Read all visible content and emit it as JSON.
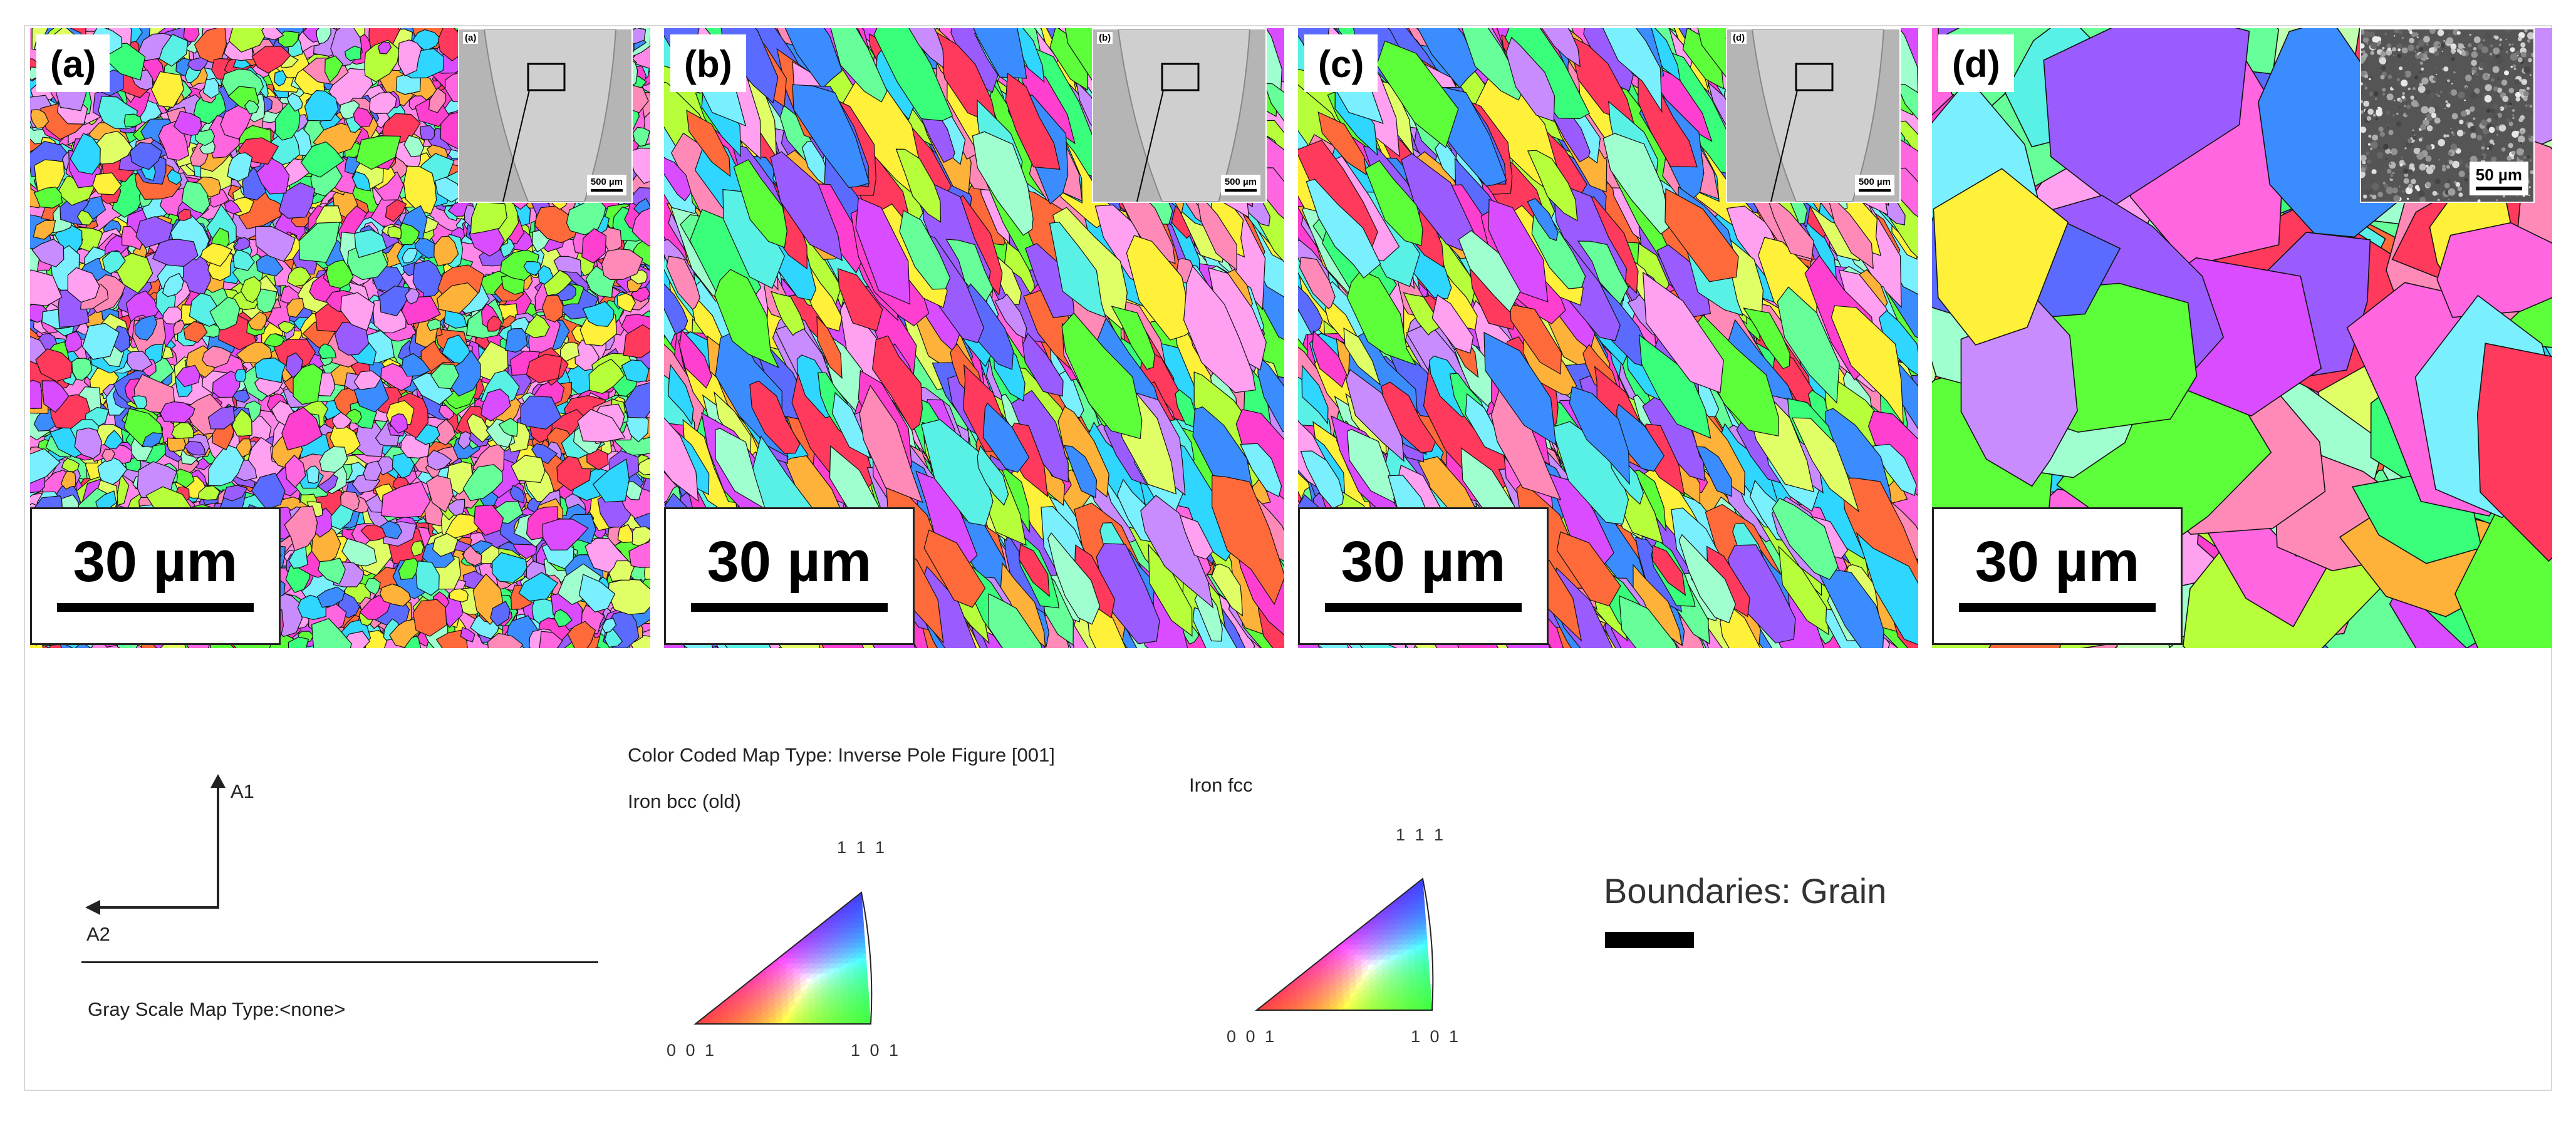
{
  "panels": [
    {
      "label": "(a)",
      "scale": "30 µm",
      "inset_label": "(a)",
      "inset_scale": "500 µm"
    },
    {
      "label": "(b)",
      "scale": "30 µm",
      "inset_label": "(b)",
      "inset_scale": "500 µm"
    },
    {
      "label": "(c)",
      "scale": "30 µm",
      "inset_label": "(d)",
      "inset_scale": "500 µm"
    },
    {
      "label": "(d)",
      "scale": "30 µm",
      "inset_label": "",
      "inset_scale": "50 µm"
    }
  ],
  "legend": {
    "axis_a1": "A1",
    "axis_a2": "A2",
    "gray_scale": "Gray Scale Map Type:<none>",
    "color_coded": "Color Coded Map Type: Inverse Pole Figure [001]",
    "phase_bcc": "Iron bcc (old)",
    "phase_fcc": "Iron fcc",
    "tri_top": "1 1 1",
    "tri_left": "0 0 1",
    "tri_right": "1 0 1",
    "boundaries": "Boundaries: Grain"
  },
  "colors": {
    "boundary": "#000000",
    "ipf_red": "#ff0000",
    "ipf_green": "#00ff00",
    "ipf_blue": "#0000ff"
  }
}
